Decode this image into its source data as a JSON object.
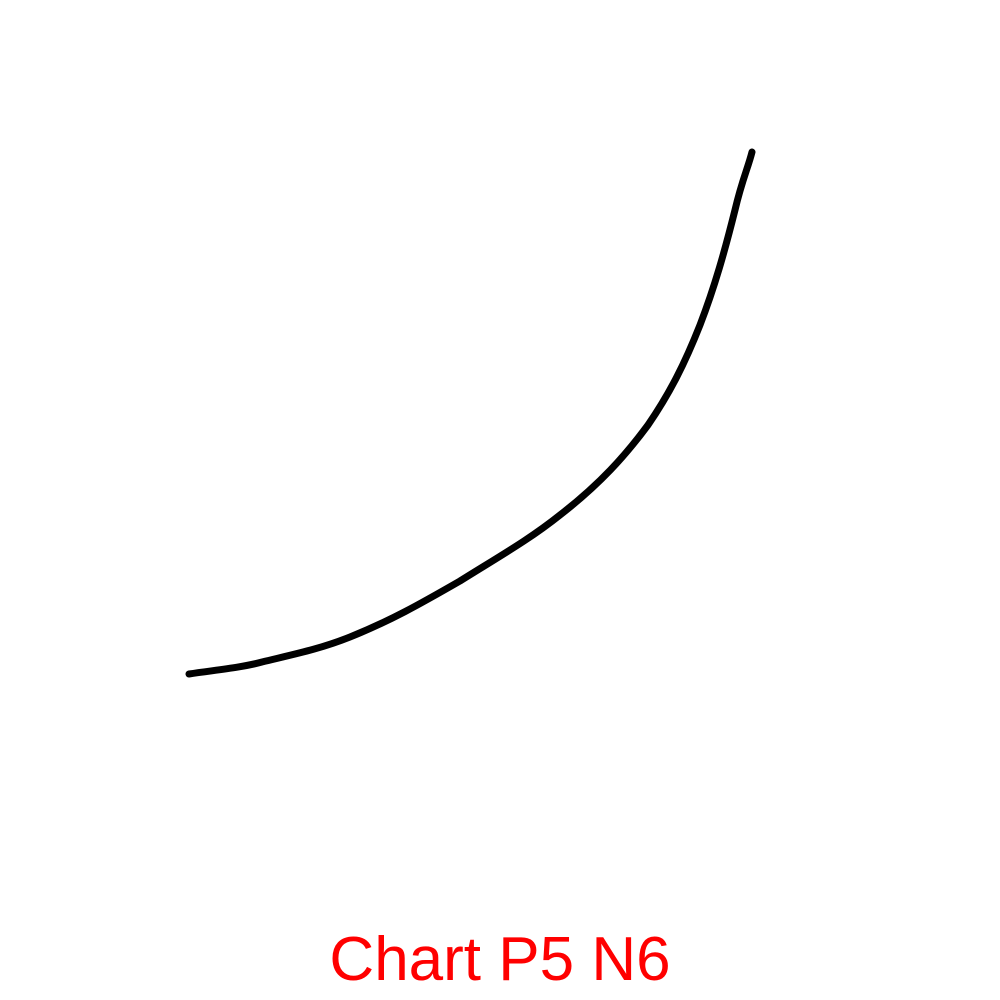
{
  "caption": "Chart P5 N6"
}
